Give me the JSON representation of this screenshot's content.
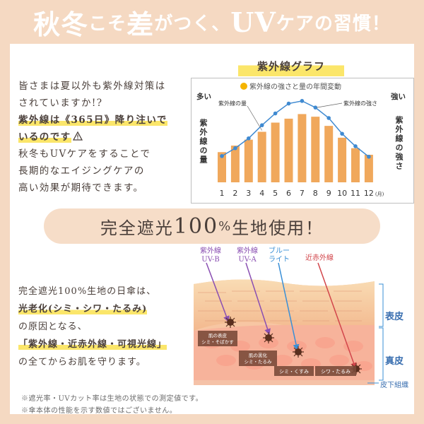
{
  "title": {
    "part1": "秋冬",
    "part2": "こそ",
    "part3": "差",
    "part4": "がつく、",
    "part5": "UV",
    "part6": "ケアの習慣！"
  },
  "intro": {
    "line1": "皆さまは夏以外も紫外線対策は",
    "line2": "されていますか!?",
    "line3": "紫外線は《365日》降り注いで",
    "line4": "いるのです",
    "line4_icon": "warning-icon",
    "line5": "秋冬もUVケアをすることで",
    "line6": "長期的なエイジングケアの",
    "line7": "高い効果が期待できます。"
  },
  "chart_title": "紫外線グラフ",
  "chart_data": {
    "type": "bar",
    "title": "紫外線の強さと量の年間変動",
    "categories": [
      "1",
      "2",
      "3",
      "4",
      "5",
      "6",
      "7",
      "8",
      "9",
      "10",
      "11",
      "12"
    ],
    "x_unit": "(月)",
    "series": [
      {
        "name": "紫外線の量",
        "type": "bar",
        "values": [
          46,
          56,
          65,
          77,
          91,
          97,
          104,
          100,
          86,
          68,
          52,
          42
        ],
        "color": "#f0a85c"
      },
      {
        "name": "紫外線の強さ",
        "type": "line",
        "values": [
          40,
          52,
          67,
          87,
          105,
          120,
          124,
          114,
          98,
          74,
          55,
          39
        ],
        "color": "#3f8ad1"
      }
    ],
    "left_top_label": "多い",
    "left_axis_label": "紫外線の量",
    "right_top_label": "強い",
    "right_axis_label": "紫外線の強さ",
    "bar_label": "紫外線の量",
    "line_label": "紫外線の強さ",
    "ylim": [
      0,
      140
    ],
    "grid": false
  },
  "pill": {
    "prefix": "完全遮光",
    "num": "100",
    "pct": "%",
    "suffix": "生地使用！"
  },
  "intro2": {
    "line1": "完全遮光100%生地の日傘は、",
    "line2": "光老化(シミ・シワ・たるみ)",
    "line3": "の原因となる、",
    "line4": "「紫外線・近赤外線・可視光線」",
    "line5": "の全てからお肌を守ります。"
  },
  "rays": {
    "uvb": "紫外線\nUV-B",
    "uva": "紫外線\nUV-A",
    "blue": "ブルー\nライト",
    "nir": "近赤外線",
    "uvb_l1": "紫外線",
    "uvb_l2": "UV-B",
    "uva_l1": "紫外線",
    "uva_l2": "UV-A",
    "blue_l1": "ブルー",
    "blue_l2": "ライト"
  },
  "skin": {
    "layer1": "表皮",
    "layer2": "真皮",
    "layer3": "皮下組織",
    "box1_l1": "肌の表皮",
    "box1_l2": "シミ・そばかす",
    "box2_l1": "肌の黒化",
    "box2_l2": "シミ・たるみ",
    "box3": "シミ・くすみ",
    "box4": "シワ・たるみ"
  },
  "notes": {
    "n1": "※遮光率・UVカット率は生地の状態での測定値です。",
    "n2": "※傘本体の性能を示す数値ではございません。"
  },
  "colors": {
    "bg": "#f5d9c2",
    "bar": "#f0a85c",
    "line": "#3f8ad1",
    "highlight": "#fbe66a",
    "accent_purple": "#8a4fb2",
    "accent_blue": "#3a8fd6",
    "accent_red": "#d2464b"
  }
}
